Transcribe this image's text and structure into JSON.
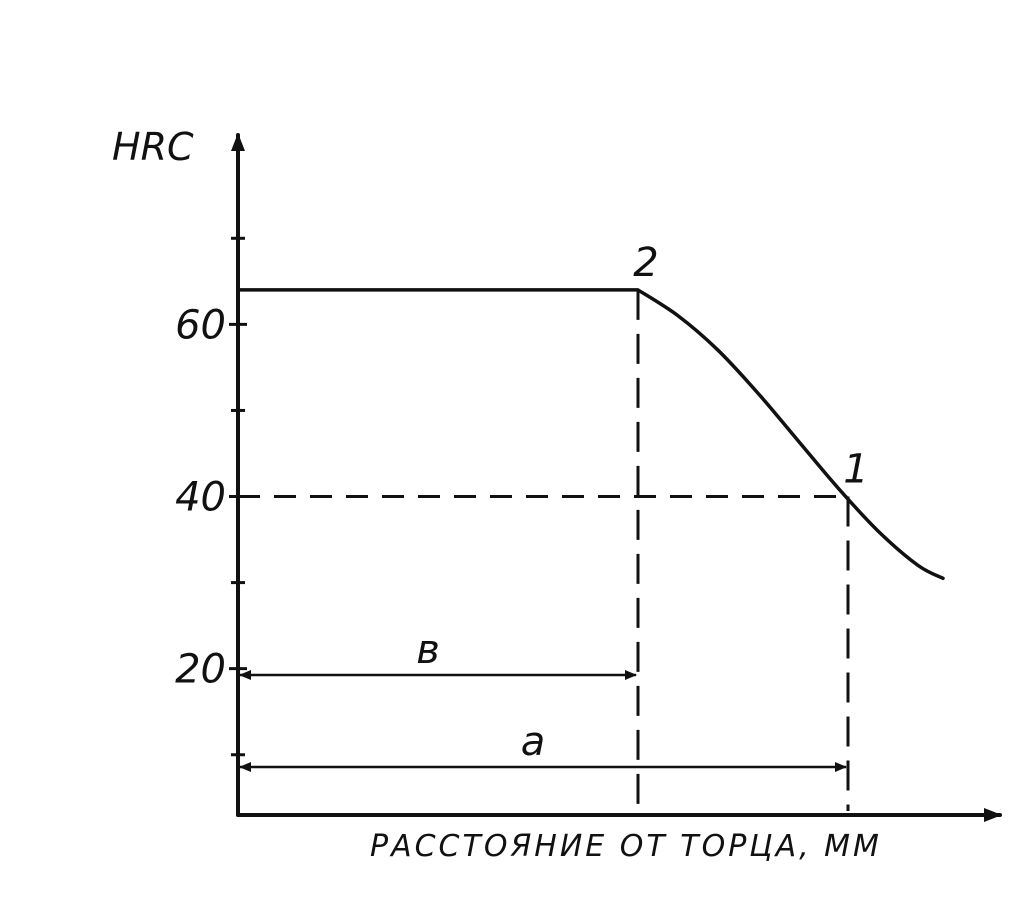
{
  "chart_data": {
    "type": "line",
    "title": "",
    "xlabel": "РАССТОЯНИЕ ОТ ТОРЦА, ММ",
    "ylabel": "HRC",
    "y_ticks": [
      20,
      40,
      60
    ],
    "ylim": [
      3,
      82
    ],
    "grid": false,
    "series": [
      {
        "values": [
          {
            "x": 0,
            "y": 64
          },
          {
            "x": 400,
            "y": 64
          },
          {
            "x": 440,
            "y": 61
          },
          {
            "x": 480,
            "y": 57
          },
          {
            "x": 520,
            "y": 52
          },
          {
            "x": 560,
            "y": 46.5
          },
          {
            "x": 600,
            "y": 41
          },
          {
            "x": 640,
            "y": 36
          },
          {
            "x": 680,
            "y": 32
          },
          {
            "x": 705,
            "y": 30.5
          }
        ]
      }
    ],
    "points": [
      {
        "label": "2",
        "x": 400,
        "y": 64
      },
      {
        "label": "1",
        "x": 610,
        "y": 40
      }
    ],
    "reference_lines": [
      {
        "orientation": "horizontal",
        "y": 40
      },
      {
        "orientation": "vertical",
        "x": 400
      },
      {
        "orientation": "vertical",
        "x": 610
      }
    ],
    "dimensions": [
      {
        "label": "в",
        "from_x": 0,
        "to_x": 400
      },
      {
        "label": "а",
        "from_x": 0,
        "to_x": 610
      }
    ]
  }
}
